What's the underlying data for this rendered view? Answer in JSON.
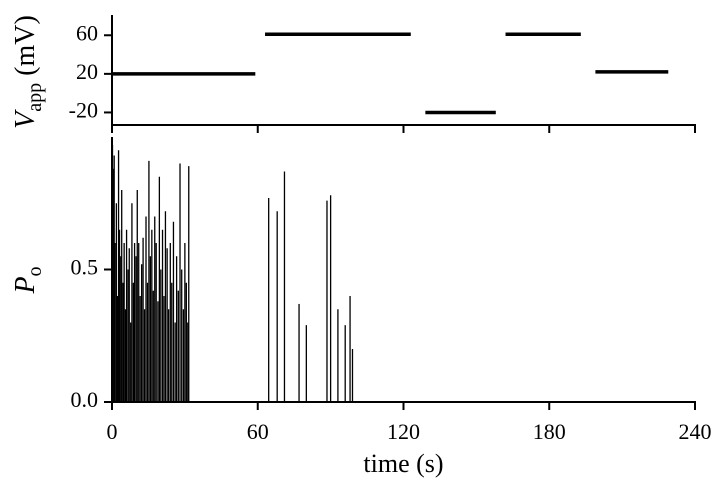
{
  "chart_data": [
    {
      "type": "segments",
      "ylabel": {
        "symbol": "V",
        "subscript": "app",
        "unit": "(mV)"
      },
      "steps": [
        {
          "start": 0,
          "end": 59,
          "value": 20
        },
        {
          "start": 63,
          "end": 123,
          "value": 61
        },
        {
          "start": 129,
          "end": 158,
          "value": -20
        },
        {
          "start": 162,
          "end": 193,
          "value": 61
        },
        {
          "start": 199,
          "end": 229,
          "value": 22
        }
      ],
      "color": "#000000",
      "xlim": [
        0,
        240
      ],
      "xticks": [
        0,
        60,
        120,
        180,
        240
      ],
      "ylim": [
        -33,
        81
      ],
      "yticks": [
        60,
        20,
        -20
      ]
    },
    {
      "type": "spikes",
      "ylabel": {
        "symbol": "P",
        "subscript": "o"
      },
      "xlabel": "time (s)",
      "x": [
        0.2,
        0.5,
        0.9,
        1.3,
        1.8,
        2.2,
        2.7,
        3.1,
        3.6,
        4.0,
        4.5,
        5.0,
        5.5,
        6.0,
        6.6,
        7.1,
        7.7,
        8.2,
        8.8,
        9.3,
        9.9,
        10.4,
        11.0,
        11.6,
        12.2,
        12.8,
        13.4,
        14.0,
        14.6,
        15.2,
        15.8,
        16.4,
        17.0,
        17.6,
        18.2,
        18.9,
        19.5,
        20.1,
        20.8,
        21.4,
        22.0,
        22.7,
        23.3,
        24.0,
        24.6,
        25.3,
        26.0,
        26.6,
        27.3,
        28.0,
        28.7,
        29.4,
        30.0,
        30.6,
        31.2,
        31.6,
        64.5,
        68,
        71,
        77,
        80,
        88.5,
        90,
        93,
        96,
        98,
        99
      ],
      "values": [
        0.97,
        0.88,
        0.93,
        0.6,
        0.75,
        0.4,
        0.95,
        0.65,
        0.55,
        0.8,
        0.45,
        0.6,
        0.35,
        0.65,
        0.5,
        0.58,
        0.3,
        0.75,
        0.45,
        0.6,
        0.55,
        0.8,
        0.6,
        0.4,
        0.52,
        0.62,
        0.35,
        0.7,
        0.45,
        0.91,
        0.55,
        0.65,
        0.42,
        0.7,
        0.6,
        0.38,
        0.85,
        0.5,
        0.65,
        0.4,
        0.72,
        0.58,
        0.35,
        0.6,
        0.45,
        0.68,
        0.3,
        0.55,
        0.42,
        0.9,
        0.5,
        0.35,
        0.6,
        0.45,
        0.3,
        0.89,
        0.77,
        0.72,
        0.87,
        0.37,
        0.29,
        0.76,
        0.78,
        0.35,
        0.29,
        0.4,
        0.2
      ],
      "color": "#000000",
      "xlim": [
        0,
        240
      ],
      "xticks": [
        0,
        60,
        120,
        180,
        240
      ],
      "ylim": [
        0,
        1.0
      ],
      "yticks": [
        {
          "value": 0,
          "label": "0.0"
        },
        0.5
      ]
    }
  ]
}
